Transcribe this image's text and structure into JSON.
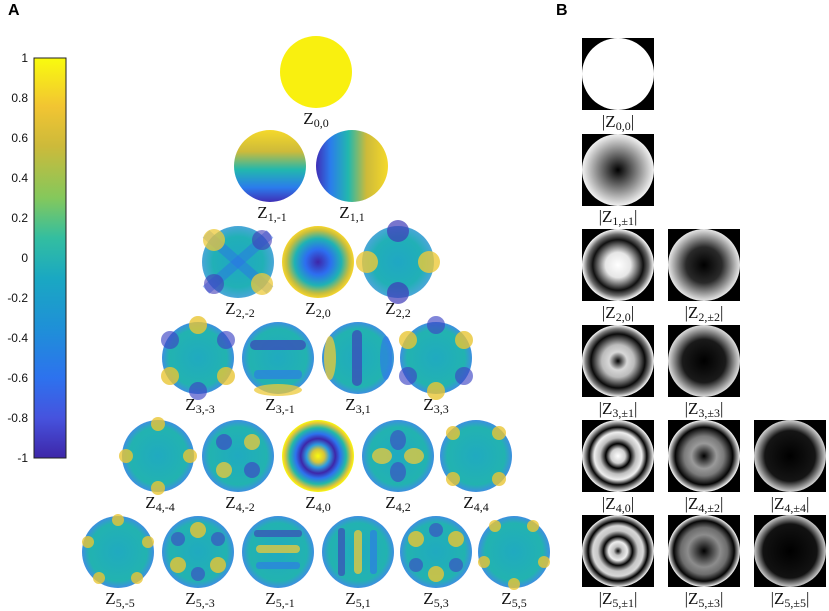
{
  "panels": {
    "a": "A",
    "b": "B"
  },
  "colorbar": {
    "ticks": [
      "1",
      "0.8",
      "0.6",
      "0.4",
      "0.2",
      "0",
      "-0.2",
      "-0.4",
      "-0.6",
      "-0.8",
      "-1"
    ],
    "colors": [
      "#f9fb0e",
      "#f2c532",
      "#ccbb3a",
      "#84c85c",
      "#28bd9b",
      "#1aa8bf",
      "#1f8fd8",
      "#2e74f0",
      "#4656e5",
      "#4a3bc4",
      "#3e26a8"
    ]
  },
  "pyramid_labels": [
    [
      {
        "main": "Z",
        "sub": "0,0"
      }
    ],
    [
      {
        "main": "Z",
        "sub": "1,-1"
      },
      {
        "main": "Z",
        "sub": "1,1"
      }
    ],
    [
      {
        "main": "Z",
        "sub": "2,-2"
      },
      {
        "main": "Z",
        "sub": "2,0"
      },
      {
        "main": "Z",
        "sub": "2,2"
      }
    ],
    [
      {
        "main": "Z",
        "sub": "3,-3"
      },
      {
        "main": "Z",
        "sub": "3,-1"
      },
      {
        "main": "Z",
        "sub": "3,1"
      },
      {
        "main": "Z",
        "sub": "3,3"
      }
    ],
    [
      {
        "main": "Z",
        "sub": "4,-4"
      },
      {
        "main": "Z",
        "sub": "4,-2"
      },
      {
        "main": "Z",
        "sub": "4,0"
      },
      {
        "main": "Z",
        "sub": "4,2"
      },
      {
        "main": "Z",
        "sub": "4,4"
      }
    ],
    [
      {
        "main": "Z",
        "sub": "5,-5"
      },
      {
        "main": "Z",
        "sub": "5,-3"
      },
      {
        "main": "Z",
        "sub": "5,-1"
      },
      {
        "main": "Z",
        "sub": "5,1"
      },
      {
        "main": "Z",
        "sub": "5,3"
      },
      {
        "main": "Z",
        "sub": "5,5"
      }
    ]
  ],
  "magnitude_labels": [
    [
      {
        "pre": "|Z",
        "sub": "0,0",
        "post": "|"
      }
    ],
    [
      {
        "pre": "|Z",
        "sub": "1,±1",
        "post": "|"
      }
    ],
    [
      {
        "pre": "|Z",
        "sub": "2,0",
        "post": "|"
      },
      {
        "pre": "|Z",
        "sub": "2,±2",
        "post": "|"
      }
    ],
    [
      {
        "pre": "|Z",
        "sub": "3,±1",
        "post": "|"
      },
      {
        "pre": "|Z",
        "sub": "3,±3",
        "post": "|"
      }
    ],
    [
      {
        "pre": "|Z",
        "sub": "4,0",
        "post": "|"
      },
      {
        "pre": "|Z",
        "sub": "4,±2",
        "post": "|"
      },
      {
        "pre": "|Z",
        "sub": "4,±4",
        "post": "|"
      }
    ],
    [
      {
        "pre": "|Z",
        "sub": "5,±1",
        "post": "|"
      },
      {
        "pre": "|Z",
        "sub": "5,±3",
        "post": "|"
      },
      {
        "pre": "|Z",
        "sub": "5,±5",
        "post": "|"
      }
    ]
  ]
}
